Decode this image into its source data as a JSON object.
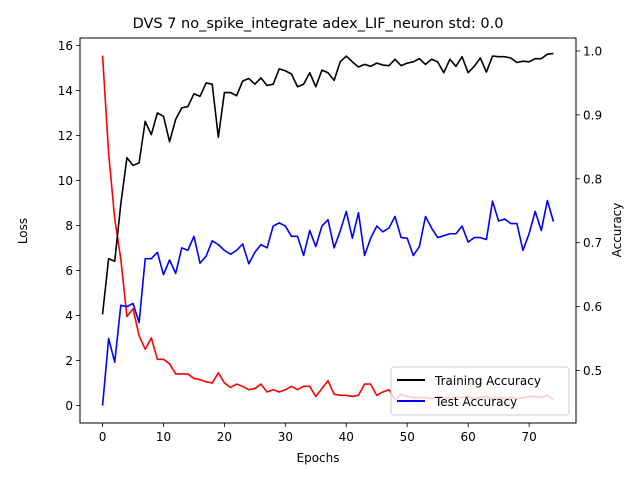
{
  "chart_data": {
    "type": "line",
    "title": "DVS 7 no_spike_integrate adex_LIF_neuron std: 0.0",
    "xlabel": "Epochs",
    "ylabel": "Loss",
    "y2label": "Accuracy",
    "xlim": [
      -3.7,
      77.7
    ],
    "ylim": [
      -0.78,
      16.33
    ],
    "y2lim": [
      0.4179,
      1.0203
    ],
    "xticks": [
      0,
      10,
      20,
      30,
      40,
      50,
      60,
      70
    ],
    "yticks": [
      0,
      2,
      4,
      6,
      8,
      10,
      12,
      14,
      16
    ],
    "y2ticks": [
      0.5,
      0.6,
      0.7,
      0.8,
      0.9,
      1.0
    ],
    "legend": {
      "placement": "lower-right",
      "entries": [
        "Training Accuracy",
        "Test Accuracy"
      ]
    },
    "colors": {
      "loss": "#ff0000",
      "train": "#000000",
      "test": "#0000ff"
    },
    "series": [
      {
        "axis": "left",
        "color": "#ff0000",
        "values": [
          15.55,
          11.2,
          8.3,
          6.5,
          3.95,
          4.3,
          3.1,
          2.5,
          3.0,
          2.05,
          2.05,
          1.85,
          1.4,
          1.4,
          1.4,
          1.2,
          1.15,
          1.05,
          1.0,
          1.45,
          1.0,
          0.8,
          0.95,
          0.85,
          0.7,
          0.75,
          0.95,
          0.6,
          0.7,
          0.6,
          0.7,
          0.85,
          0.7,
          0.85,
          0.85,
          0.4,
          0.75,
          1.1,
          0.5,
          0.45,
          0.45,
          0.4,
          0.45,
          0.95,
          0.95,
          0.45,
          0.6,
          0.7,
          0.25,
          0.5,
          0.4,
          0.35,
          0.35,
          0.35,
          0.3,
          0.4,
          0.35,
          0.3,
          0.35,
          0.35,
          0.4,
          0.3,
          0.35,
          0.4,
          0.3,
          0.35,
          0.3,
          0.35,
          0.3,
          0.35,
          0.4,
          0.4,
          0.35,
          0.45,
          0.25
        ]
      },
      {
        "name": "Training Accuracy",
        "axis": "right",
        "color": "#000000",
        "values": [
          0.588,
          0.675,
          0.671,
          0.761,
          0.833,
          0.821,
          0.825,
          0.89,
          0.869,
          0.903,
          0.898,
          0.858,
          0.893,
          0.911,
          0.913,
          0.933,
          0.929,
          0.95,
          0.948,
          0.865,
          0.935,
          0.935,
          0.93,
          0.953,
          0.957,
          0.948,
          0.958,
          0.946,
          0.948,
          0.972,
          0.969,
          0.964,
          0.944,
          0.948,
          0.966,
          0.944,
          0.97,
          0.966,
          0.954,
          0.983,
          0.992,
          0.983,
          0.975,
          0.979,
          0.976,
          0.981,
          0.978,
          0.977,
          0.987,
          0.977,
          0.981,
          0.983,
          0.988,
          0.979,
          0.987,
          0.983,
          0.966,
          0.987,
          0.976,
          0.991,
          0.966,
          0.976,
          0.989,
          0.967,
          0.992,
          0.991,
          0.991,
          0.989,
          0.982,
          0.984,
          0.983,
          0.988,
          0.988,
          0.995,
          0.996
        ]
      },
      {
        "name": "Test Accuracy",
        "axis": "right",
        "color": "#0000ff",
        "values": [
          0.445,
          0.55,
          0.513,
          0.602,
          0.6,
          0.605,
          0.575,
          0.675,
          0.675,
          0.685,
          0.65,
          0.673,
          0.652,
          0.692,
          0.688,
          0.71,
          0.668,
          0.679,
          0.703,
          0.697,
          0.688,
          0.682,
          0.688,
          0.698,
          0.667,
          0.685,
          0.697,
          0.692,
          0.726,
          0.731,
          0.726,
          0.71,
          0.71,
          0.68,
          0.719,
          0.694,
          0.726,
          0.736,
          0.692,
          0.718,
          0.749,
          0.707,
          0.747,
          0.68,
          0.707,
          0.726,
          0.717,
          0.723,
          0.741,
          0.708,
          0.707,
          0.68,
          0.694,
          0.741,
          0.723,
          0.708,
          0.711,
          0.714,
          0.714,
          0.726,
          0.701,
          0.708,
          0.708,
          0.705,
          0.765,
          0.734,
          0.737,
          0.73,
          0.73,
          0.688,
          0.714,
          0.749,
          0.719,
          0.766,
          0.733
        ]
      }
    ]
  }
}
